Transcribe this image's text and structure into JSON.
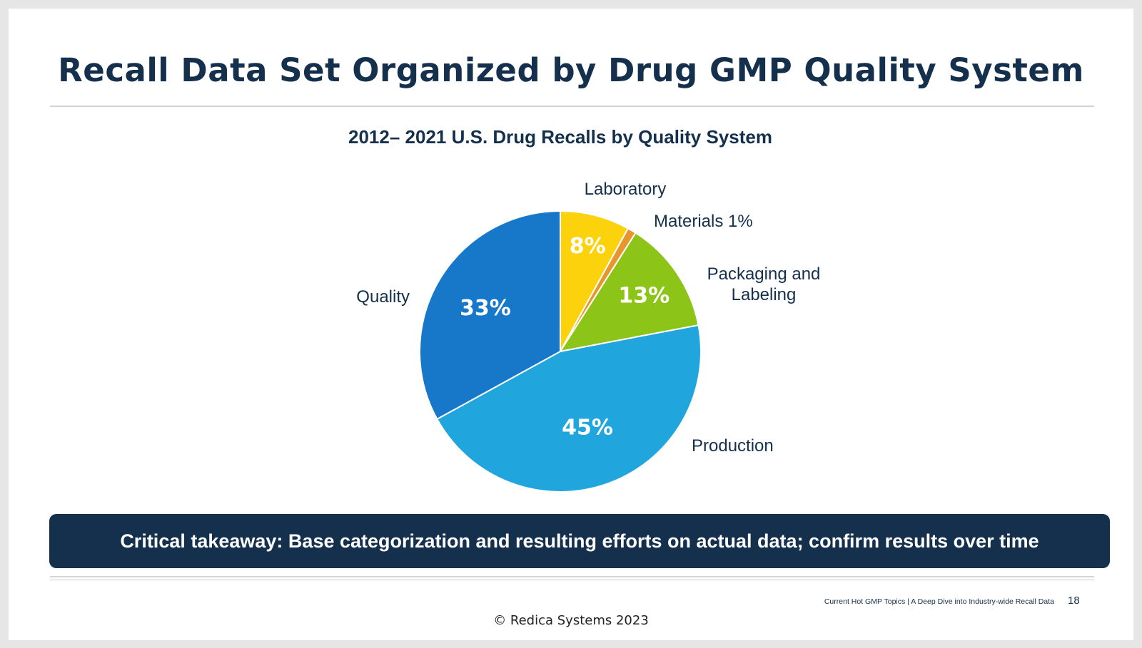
{
  "slide": {
    "title": "Recall Data Set Organized by Drug GMP Quality System",
    "takeaway": "Critical takeaway: Base categorization and resulting efforts on actual data; confirm results over time",
    "footer": "Current Hot GMP Topics |  A Deep Dive into Industry-wide Recall Data",
    "page_number": "18",
    "copyright": "© Redica Systems 2023"
  },
  "colors": {
    "navy": "#14304d",
    "laboratory": "#fbd20b",
    "materials": "#e8952e",
    "packaging": "#8cc517",
    "production": "#20a5dd",
    "quality": "#1777c8"
  },
  "chart_data": {
    "type": "pie",
    "title": "2012– 2021 U.S. Drug Recalls by Quality System",
    "start": "12 o'clock, clockwise",
    "slices": [
      {
        "name": "Laboratory",
        "label": [
          "Laboratory"
        ],
        "value": 8,
        "value_label": "8%",
        "color": "#fbd20b"
      },
      {
        "name": "Materials",
        "label": [
          "Materials 1%"
        ],
        "value": 1,
        "value_label": "",
        "color": "#e8952e"
      },
      {
        "name": "Packaging and Labeling",
        "label": [
          "Packaging and",
          "Labeling"
        ],
        "value": 13,
        "value_label": "13%",
        "color": "#8cc517"
      },
      {
        "name": "Production",
        "label": [
          "Production"
        ],
        "value": 45,
        "value_label": "45%",
        "color": "#20a5dd"
      },
      {
        "name": "Quality",
        "label": [
          "Quality"
        ],
        "value": 33,
        "value_label": "33%",
        "color": "#1777c8"
      }
    ]
  }
}
